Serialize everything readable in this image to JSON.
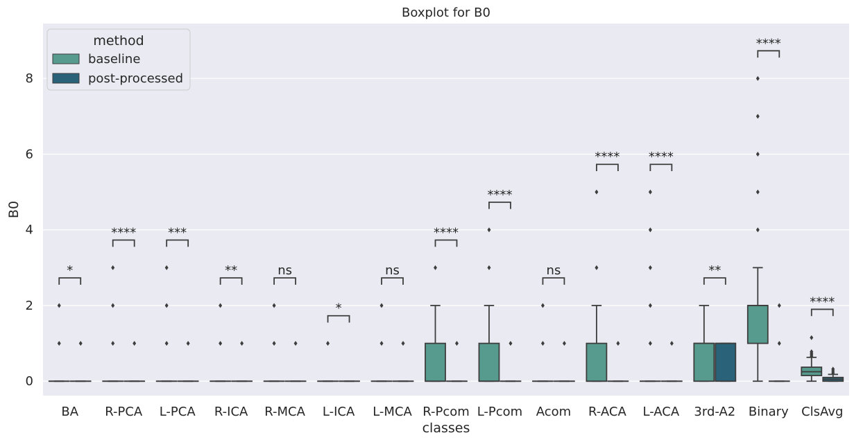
{
  "chart_data": {
    "type": "box",
    "title": "Boxplot for B0",
    "xlabel": "classes",
    "ylabel": "B0",
    "ylim": [
      -0.38,
      9.45
    ],
    "yticks": [
      0,
      2,
      4,
      6,
      8
    ],
    "grid": true,
    "categories": [
      "BA",
      "R-PCA",
      "L-PCA",
      "R-ICA",
      "R-MCA",
      "L-ICA",
      "L-MCA",
      "R-Pcom",
      "L-Pcom",
      "Acom",
      "R-ACA",
      "L-ACA",
      "3rd-A2",
      "Binary",
      "ClsAvg"
    ],
    "legend": {
      "title": "method",
      "position": "top-left",
      "entries": [
        {
          "label": "baseline",
          "color": "#579b8f"
        },
        {
          "label": "post-processed",
          "color": "#2a6379"
        }
      ]
    },
    "series": [
      {
        "name": "baseline",
        "color": "#579b8f",
        "boxes": [
          {
            "q1": 0,
            "median": 0,
            "q3": 0,
            "whislo": 0,
            "whishi": 0,
            "fliers": [
              1,
              2
            ]
          },
          {
            "q1": 0,
            "median": 0,
            "q3": 0,
            "whislo": 0,
            "whishi": 0,
            "fliers": [
              1,
              2,
              3
            ]
          },
          {
            "q1": 0,
            "median": 0,
            "q3": 0,
            "whislo": 0,
            "whishi": 0,
            "fliers": [
              1,
              2,
              3
            ]
          },
          {
            "q1": 0,
            "median": 0,
            "q3": 0,
            "whislo": 0,
            "whishi": 0,
            "fliers": [
              1,
              2
            ]
          },
          {
            "q1": 0,
            "median": 0,
            "q3": 0,
            "whislo": 0,
            "whishi": 0,
            "fliers": [
              1,
              2
            ]
          },
          {
            "q1": 0,
            "median": 0,
            "q3": 0,
            "whislo": 0,
            "whishi": 0,
            "fliers": [
              1
            ]
          },
          {
            "q1": 0,
            "median": 0,
            "q3": 0,
            "whislo": 0,
            "whishi": 0,
            "fliers": [
              1,
              2
            ]
          },
          {
            "q1": 0,
            "median": 0,
            "q3": 1,
            "whislo": 0,
            "whishi": 2,
            "fliers": [
              3
            ]
          },
          {
            "q1": 0,
            "median": 0,
            "q3": 1,
            "whislo": 0,
            "whishi": 2,
            "fliers": [
              3,
              4
            ]
          },
          {
            "q1": 0,
            "median": 0,
            "q3": 0,
            "whislo": 0,
            "whishi": 0,
            "fliers": [
              1,
              2
            ]
          },
          {
            "q1": 0,
            "median": 0,
            "q3": 1,
            "whislo": 0,
            "whishi": 2,
            "fliers": [
              3,
              5
            ]
          },
          {
            "q1": 0,
            "median": 0,
            "q3": 0,
            "whislo": 0,
            "whishi": 0,
            "fliers": [
              1,
              2,
              3,
              4,
              5
            ]
          },
          {
            "q1": 0,
            "median": 1,
            "q3": 1,
            "whislo": 0,
            "whishi": 2,
            "fliers": []
          },
          {
            "q1": 1,
            "median": 2,
            "q3": 2,
            "whislo": 0,
            "whishi": 3,
            "fliers": [
              4,
              5,
              6,
              7,
              8
            ]
          },
          {
            "q1": 0.15,
            "median": 0.25,
            "q3": 0.37,
            "whislo": 0,
            "whishi": 0.63,
            "fliers": [
              0.66,
              0.7,
              0.74,
              0.78,
              1.15
            ]
          }
        ]
      },
      {
        "name": "post-processed",
        "color": "#2a6379",
        "boxes": [
          {
            "q1": 0,
            "median": 0,
            "q3": 0,
            "whislo": 0,
            "whishi": 0,
            "fliers": [
              1
            ]
          },
          {
            "q1": 0,
            "median": 0,
            "q3": 0,
            "whislo": 0,
            "whishi": 0,
            "fliers": [
              1
            ]
          },
          {
            "q1": 0,
            "median": 0,
            "q3": 0,
            "whislo": 0,
            "whishi": 0,
            "fliers": [
              1
            ]
          },
          {
            "q1": 0,
            "median": 0,
            "q3": 0,
            "whislo": 0,
            "whishi": 0,
            "fliers": [
              1
            ]
          },
          {
            "q1": 0,
            "median": 0,
            "q3": 0,
            "whislo": 0,
            "whishi": 0,
            "fliers": [
              1
            ]
          },
          {
            "q1": 0,
            "median": 0,
            "q3": 0,
            "whislo": 0,
            "whishi": 0,
            "fliers": []
          },
          {
            "q1": 0,
            "median": 0,
            "q3": 0,
            "whislo": 0,
            "whishi": 0,
            "fliers": [
              1
            ]
          },
          {
            "q1": 0,
            "median": 0,
            "q3": 0,
            "whislo": 0,
            "whishi": 0,
            "fliers": [
              1
            ]
          },
          {
            "q1": 0,
            "median": 0,
            "q3": 0,
            "whislo": 0,
            "whishi": 0,
            "fliers": [
              1
            ]
          },
          {
            "q1": 0,
            "median": 0,
            "q3": 0,
            "whislo": 0,
            "whishi": 0,
            "fliers": [
              1
            ]
          },
          {
            "q1": 0,
            "median": 0,
            "q3": 0,
            "whislo": 0,
            "whishi": 0,
            "fliers": [
              1
            ]
          },
          {
            "q1": 0,
            "median": 0,
            "q3": 0,
            "whislo": 0,
            "whishi": 0,
            "fliers": [
              1
            ]
          },
          {
            "q1": 0,
            "median": 1,
            "q3": 1,
            "whislo": 0,
            "whishi": 1,
            "fliers": []
          },
          {
            "q1": 0,
            "median": 0,
            "q3": 0,
            "whislo": 0,
            "whishi": 0,
            "fliers": [
              1,
              2
            ]
          },
          {
            "q1": 0,
            "median": 0.05,
            "q3": 0.1,
            "whislo": 0,
            "whishi": 0.18,
            "fliers": [
              0.22,
              0.27,
              0.32
            ]
          }
        ]
      }
    ],
    "annotations": [
      {
        "category": "BA",
        "text": "*",
        "y": 2.73
      },
      {
        "category": "R-PCA",
        "text": "****",
        "y": 3.73
      },
      {
        "category": "L-PCA",
        "text": "***",
        "y": 3.73
      },
      {
        "category": "R-ICA",
        "text": "**",
        "y": 2.73
      },
      {
        "category": "R-MCA",
        "text": "ns",
        "y": 2.73
      },
      {
        "category": "L-ICA",
        "text": "*",
        "y": 1.73
      },
      {
        "category": "L-MCA",
        "text": "ns",
        "y": 2.73
      },
      {
        "category": "R-Pcom",
        "text": "****",
        "y": 3.73
      },
      {
        "category": "L-Pcom",
        "text": "****",
        "y": 4.73
      },
      {
        "category": "Acom",
        "text": "ns",
        "y": 2.73
      },
      {
        "category": "R-ACA",
        "text": "****",
        "y": 5.73
      },
      {
        "category": "L-ACA",
        "text": "****",
        "y": 5.73
      },
      {
        "category": "3rd-A2",
        "text": "**",
        "y": 2.73
      },
      {
        "category": "Binary",
        "text": "****",
        "y": 8.73
      },
      {
        "category": "ClsAvg",
        "text": "****",
        "y": 1.9
      }
    ]
  }
}
